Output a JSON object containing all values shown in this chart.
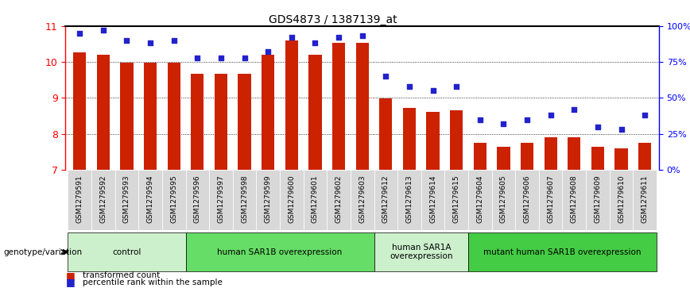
{
  "title": "GDS4873 / 1387139_at",
  "samples": [
    "GSM1279591",
    "GSM1279592",
    "GSM1279593",
    "GSM1279594",
    "GSM1279595",
    "GSM1279596",
    "GSM1279597",
    "GSM1279598",
    "GSM1279599",
    "GSM1279600",
    "GSM1279601",
    "GSM1279602",
    "GSM1279603",
    "GSM1279612",
    "GSM1279613",
    "GSM1279614",
    "GSM1279615",
    "GSM1279604",
    "GSM1279605",
    "GSM1279606",
    "GSM1279607",
    "GSM1279608",
    "GSM1279609",
    "GSM1279610",
    "GSM1279611"
  ],
  "bar_values": [
    10.27,
    10.2,
    9.97,
    9.97,
    9.97,
    9.68,
    9.68,
    9.68,
    10.2,
    10.6,
    10.2,
    10.52,
    10.52,
    8.98,
    8.72,
    8.62,
    8.65,
    7.76,
    7.65,
    7.76,
    7.9,
    7.9,
    7.65,
    7.6,
    7.75
  ],
  "pct_right": [
    95,
    97,
    90,
    88,
    90,
    78,
    78,
    78,
    82,
    92,
    88,
    92,
    93,
    65,
    58,
    55,
    58,
    35,
    32,
    35,
    38,
    42,
    30,
    28,
    38
  ],
  "group_info": [
    {
      "label": "control",
      "start": 0,
      "end": 4,
      "color": "#ccf0cc"
    },
    {
      "label": "human SAR1B overexpression",
      "start": 5,
      "end": 12,
      "color": "#66dd66"
    },
    {
      "label": "human SAR1A\noverexpression",
      "start": 13,
      "end": 16,
      "color": "#ccf0cc"
    },
    {
      "label": "mutant human SAR1B overexpression",
      "start": 17,
      "end": 24,
      "color": "#44cc44"
    }
  ],
  "bar_color": "#cc2200",
  "dot_color": "#2222cc",
  "ylim": [
    7,
    11
  ],
  "yticks": [
    7,
    8,
    9,
    10,
    11
  ],
  "right_yticks": [
    0,
    25,
    50,
    75,
    100
  ],
  "right_ylabels": [
    "0%",
    "25%",
    "50%",
    "75%",
    "100%"
  ],
  "genotype_label": "genotype/variation",
  "legend1": "transformed count",
  "legend2": "percentile rank within the sample"
}
